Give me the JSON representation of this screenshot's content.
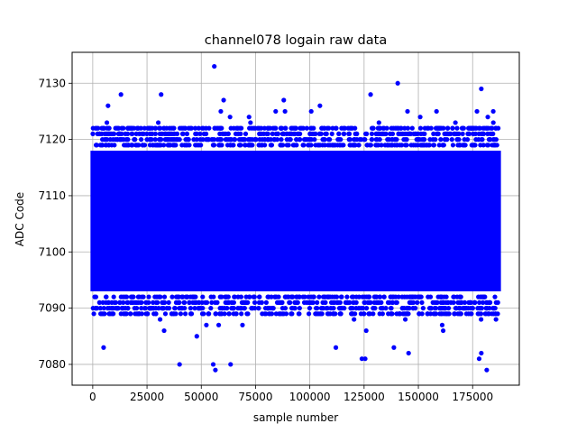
{
  "chart_data": {
    "type": "scatter",
    "title": "channel078 logain raw data",
    "xlabel": "sample number",
    "ylabel": "ADC Code",
    "xlim": [
      -9500,
      196500
    ],
    "ylim": [
      7076.3,
      7135.5
    ],
    "xticks": [
      0,
      25000,
      50000,
      75000,
      100000,
      125000,
      150000,
      175000
    ],
    "xtick_labels": [
      "0",
      "25000",
      "50000",
      "75000",
      "100000",
      "125000",
      "150000",
      "175000"
    ],
    "yticks": [
      7080,
      7090,
      7100,
      7110,
      7120,
      7130
    ],
    "ytick_labels": [
      "7080",
      "7090",
      "7100",
      "7110",
      "7120",
      "7130"
    ],
    "grid": true,
    "marker_color": "#0000ff",
    "series": [
      {
        "x_range": [
          0,
          187000
        ],
        "dense_band": [
          7093,
          7118
        ],
        "outliers": [
          [
            56000,
            7133
          ],
          [
            140500,
            7130
          ],
          [
            179000,
            7129
          ],
          [
            128000,
            7128
          ],
          [
            13000,
            7128
          ],
          [
            31500,
            7128
          ],
          [
            88000,
            7127
          ],
          [
            184500,
            7125
          ],
          [
            145000,
            7125
          ],
          [
            177000,
            7125
          ],
          [
            72000,
            7124
          ],
          [
            59000,
            7125
          ],
          [
            40000,
            7080
          ],
          [
            55500,
            7080
          ],
          [
            56500,
            7079
          ],
          [
            63500,
            7080
          ],
          [
            181500,
            7079
          ],
          [
            124000,
            7081
          ],
          [
            125500,
            7081
          ],
          [
            178000,
            7081
          ],
          [
            179000,
            7082
          ],
          [
            5000,
            7083
          ],
          [
            112000,
            7083
          ],
          [
            145500,
            7082
          ]
        ]
      }
    ]
  }
}
